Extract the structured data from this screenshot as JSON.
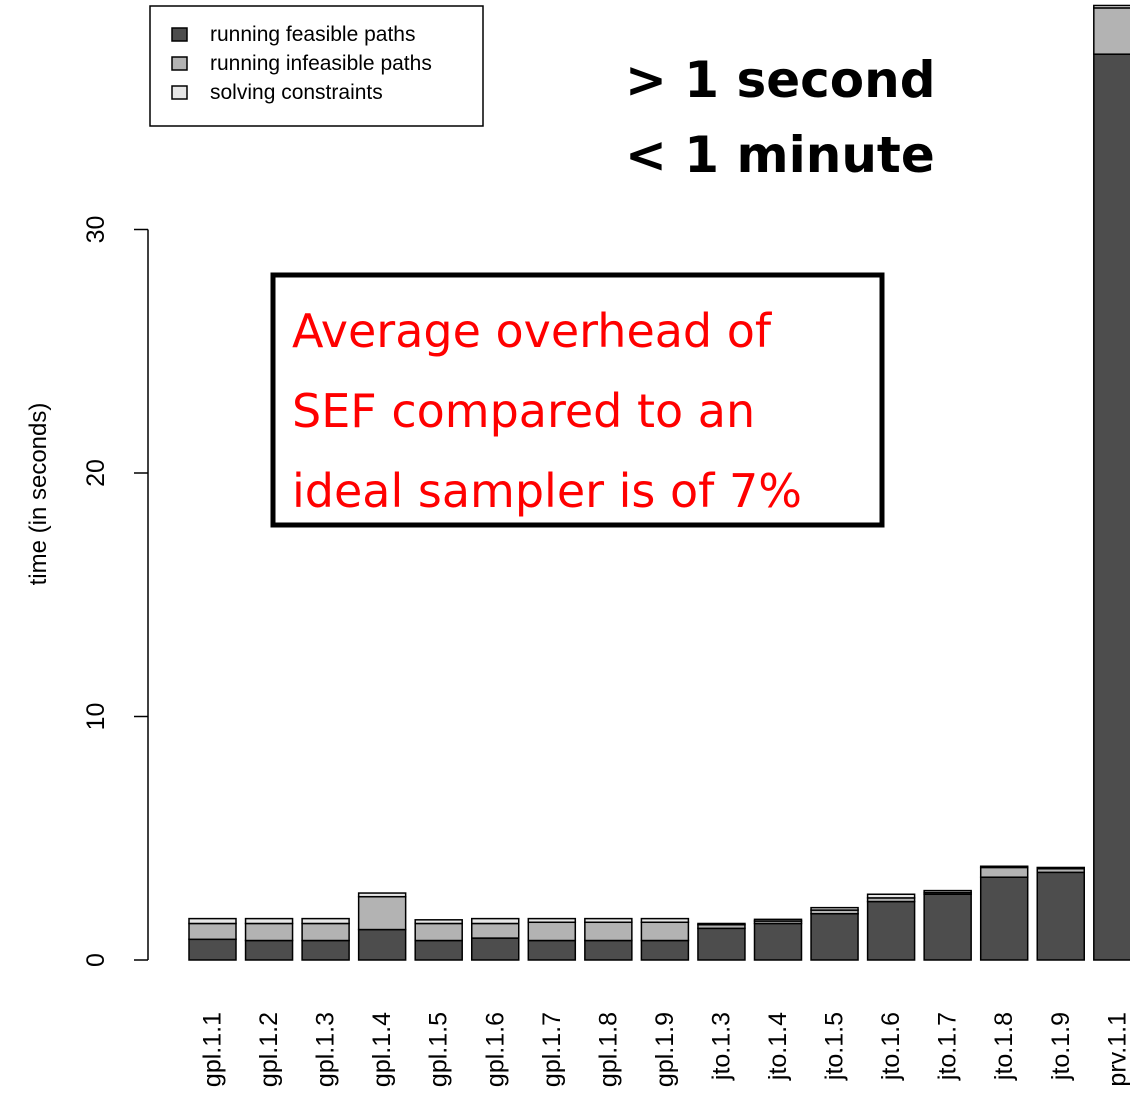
{
  "chart_data": {
    "type": "bar",
    "stacked": true,
    "title": "",
    "xlabel": "",
    "ylabel": "time (in seconds)",
    "ylim": [
      0,
      37.5
    ],
    "yticks": [
      0,
      10,
      20,
      30
    ],
    "grid": false,
    "legend_position": "top-left",
    "categories": [
      "gpl.1.1",
      "gpl.1.2",
      "gpl.1.3",
      "gpl.1.4",
      "gpl.1.5",
      "gpl.1.6",
      "gpl.1.7",
      "gpl.1.8",
      "gpl.1.9",
      "jto.1.3",
      "jto.1.4",
      "jto.1.5",
      "jto.1.6",
      "jto.1.7",
      "jto.1.8",
      "jto.1.9",
      "prv.1.1"
    ],
    "series": [
      {
        "name": "running feasible paths",
        "color": "#4d4d4d",
        "values": [
          0.85,
          0.8,
          0.8,
          1.25,
          0.8,
          0.9,
          0.8,
          0.8,
          0.8,
          1.3,
          1.5,
          1.9,
          2.4,
          2.7,
          3.4,
          3.6,
          37.2
        ]
      },
      {
        "name": "running infeasible paths",
        "color": "#b3b3b3",
        "values": [
          0.65,
          0.7,
          0.7,
          1.35,
          0.7,
          0.6,
          0.75,
          0.75,
          0.75,
          0.15,
          0.1,
          0.15,
          0.15,
          0.07,
          0.4,
          0.15,
          1.9
        ]
      },
      {
        "name": "solving constraints",
        "color": "#e6e6e6",
        "values": [
          0.2,
          0.2,
          0.2,
          0.15,
          0.15,
          0.2,
          0.15,
          0.15,
          0.15,
          0.05,
          0.07,
          0.1,
          0.15,
          0.08,
          0.05,
          0.05,
          0.1
        ]
      }
    ],
    "annotations": {
      "headline": [
        "> 1 second",
        "< 1 minute"
      ],
      "callout": [
        "Average overhead of",
        "SEF compared to an",
        "ideal sampler is of 7%"
      ]
    }
  }
}
